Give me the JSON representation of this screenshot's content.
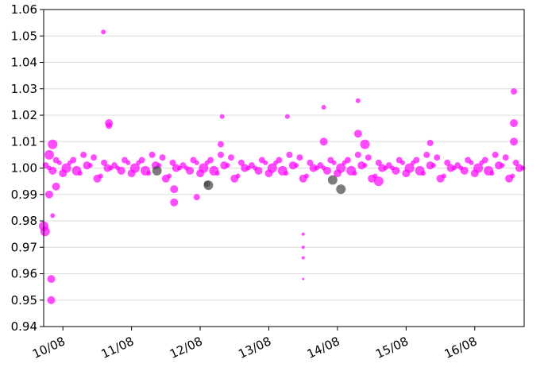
{
  "chart_data": {
    "type": "scatter",
    "xlim": [
      9.72,
      16.72
    ],
    "xticks": [
      {
        "value": 10,
        "label": "10/08"
      },
      {
        "value": 11,
        "label": "11/08"
      },
      {
        "value": 12,
        "label": "12/08"
      },
      {
        "value": 13,
        "label": "13/08"
      },
      {
        "value": 14,
        "label": "14/08"
      },
      {
        "value": 15,
        "label": "15/08"
      },
      {
        "value": 16,
        "label": "16/08"
      }
    ],
    "ylim": [
      0.94,
      1.06
    ],
    "yticks": [
      0.94,
      0.95,
      0.96,
      0.97,
      0.98,
      0.99,
      {
        "value": 1,
        "label": "1.00"
      },
      1.01,
      1.02,
      1.03,
      1.04,
      1.05,
      1.06
    ],
    "grid": true,
    "series": [
      {
        "color": "#ff00ff",
        "x": [
          9.72,
          9.74,
          9.83,
          9.83,
          9.85,
          9.85,
          9.8,
          9.8,
          9.9,
          10.59,
          10.67,
          10.67,
          11.62,
          11.62,
          11.95,
          12.32,
          12.3,
          13.27,
          13.5,
          13.5,
          13.5,
          13.5,
          13.8,
          13.8,
          14.3,
          14.3,
          14.4,
          14.6,
          15.35,
          16.57,
          16.57,
          16.57,
          9.75,
          9.85,
          9.95,
          10.05,
          10.15,
          10.25,
          10.35,
          10.45,
          10.55,
          10.65,
          10.75,
          10.85,
          10.95,
          11.05,
          11.15,
          11.25,
          11.35,
          11.45,
          11.55,
          11.65,
          11.75,
          11.85,
          11.95,
          12.05,
          12.15,
          12.25,
          12.35,
          12.45,
          12.55,
          12.65,
          12.75,
          12.85,
          12.95,
          13.05,
          13.15,
          13.25,
          13.35,
          13.45,
          13.55,
          13.65,
          13.75,
          13.85,
          13.95,
          14.05,
          14.15,
          14.25,
          14.35,
          14.45,
          14.55,
          14.65,
          14.75,
          14.85,
          14.95,
          15.05,
          15.15,
          15.25,
          15.35,
          15.45,
          15.55,
          15.65,
          15.75,
          15.85,
          15.95,
          16.05,
          16.15,
          16.25,
          16.35,
          16.45,
          16.55,
          16.65,
          9.8,
          9.9,
          10.0,
          10.1,
          10.2,
          10.3,
          10.4,
          10.5,
          10.6,
          10.7,
          10.8,
          10.9,
          11.0,
          11.1,
          11.2,
          11.3,
          11.4,
          11.5,
          11.6,
          11.7,
          11.8,
          11.9,
          12.0,
          12.1,
          12.2,
          12.3,
          12.4,
          12.5,
          12.6,
          12.7,
          12.8,
          12.9,
          13.0,
          13.1,
          13.2,
          13.3,
          13.4,
          13.5,
          13.6,
          13.7,
          13.8,
          13.9,
          14.0,
          14.1,
          14.2,
          14.3,
          14.4,
          14.5,
          14.6,
          14.7,
          14.8,
          14.9,
          15.0,
          15.1,
          15.2,
          15.3,
          15.4,
          15.5,
          15.6,
          15.7,
          15.8,
          15.9,
          16.0,
          16.1,
          16.2,
          16.3,
          16.4,
          16.5,
          16.6,
          16.7
        ],
        "values": [
          0.978,
          0.976,
          0.958,
          0.95,
          0.982,
          1.009,
          0.99,
          1.005,
          0.993,
          1.0515,
          1.017,
          1.016,
          0.987,
          0.992,
          0.989,
          1.0195,
          1.009,
          1.0195,
          0.97,
          0.966,
          0.975,
          0.958,
          1.023,
          1.01,
          1.0255,
          1.013,
          1.009,
          0.995,
          1.0095,
          1.029,
          1.017,
          1.01,
          1.001,
          0.999,
          1.002,
          1.0,
          1.003,
          0.998,
          1.001,
          1.004,
          0.997,
          1.0,
          1.001,
          0.999,
          1.002,
          1.0,
          1.003,
          0.998,
          1.001,
          1.004,
          0.997,
          1.0,
          1.001,
          0.999,
          1.002,
          1.0,
          1.003,
          0.998,
          1.001,
          1.004,
          0.997,
          1.0,
          1.001,
          0.999,
          1.002,
          1.0,
          1.003,
          0.998,
          1.001,
          1.004,
          0.997,
          1.0,
          1.001,
          0.999,
          1.002,
          1.0,
          1.003,
          0.998,
          1.001,
          1.004,
          0.997,
          1.0,
          1.001,
          0.999,
          1.002,
          1.0,
          1.003,
          0.998,
          1.001,
          1.004,
          0.997,
          1.0,
          1.001,
          0.999,
          1.002,
          1.0,
          1.003,
          0.998,
          1.001,
          1.004,
          0.997,
          1.0,
          1.0,
          1.003,
          0.998,
          1.002,
          0.999,
          1.005,
          1.001,
          0.996,
          1.002,
          1.0,
          1.0,
          1.003,
          0.998,
          1.002,
          0.999,
          1.005,
          1.001,
          0.996,
          1.002,
          1.0,
          1.0,
          1.003,
          0.998,
          1.002,
          0.999,
          1.005,
          1.001,
          0.996,
          1.002,
          1.0,
          1.0,
          1.003,
          0.998,
          1.002,
          0.999,
          1.005,
          1.001,
          0.996,
          1.002,
          1.0,
          1.0,
          1.003,
          0.998,
          1.002,
          0.999,
          1.005,
          1.001,
          0.996,
          1.002,
          1.0,
          1.0,
          1.003,
          0.998,
          1.002,
          0.999,
          1.005,
          1.001,
          0.996,
          1.002,
          1.0,
          1.0,
          1.003,
          0.998,
          1.002,
          0.999,
          1.005,
          1.001,
          0.996,
          1.002,
          1.0
        ],
        "sizes": [
          6,
          6,
          5,
          5,
          3,
          6,
          5,
          6,
          5,
          3,
          5,
          4,
          5,
          5,
          4,
          3,
          4,
          3,
          2,
          2,
          2,
          1.5,
          3,
          5,
          3,
          5,
          6,
          6,
          4,
          4,
          5,
          5,
          4,
          5,
          3,
          6,
          4,
          3,
          5,
          4,
          3,
          5,
          4,
          5,
          3,
          6,
          4,
          3,
          5,
          4,
          3,
          5,
          4,
          5,
          3,
          6,
          4,
          3,
          5,
          4,
          3,
          5,
          4,
          5,
          3,
          6,
          4,
          3,
          5,
          4,
          3,
          5,
          4,
          5,
          3,
          6,
          4,
          3,
          5,
          4,
          3,
          5,
          4,
          5,
          3,
          6,
          4,
          3,
          5,
          4,
          3,
          5,
          4,
          5,
          3,
          6,
          4,
          3,
          5,
          4,
          3,
          5,
          3,
          4,
          5,
          3,
          6,
          4,
          3,
          5,
          4,
          3,
          3,
          4,
          5,
          3,
          6,
          4,
          3,
          5,
          4,
          3,
          3,
          4,
          5,
          3,
          6,
          4,
          3,
          5,
          4,
          3,
          3,
          4,
          5,
          3,
          6,
          4,
          3,
          5,
          4,
          3,
          3,
          4,
          5,
          3,
          6,
          4,
          3,
          5,
          4,
          3,
          3,
          4,
          5,
          3,
          6,
          4,
          3,
          5,
          4,
          3,
          3,
          4,
          5,
          3,
          6,
          4,
          3,
          5,
          4,
          3
        ]
      },
      {
        "color": "#444444",
        "x": [
          11.37,
          12.12,
          12.1,
          13.93,
          14.05
        ],
        "values": [
          0.999,
          0.9935,
          0.994,
          0.9955,
          0.992
        ],
        "sizes": [
          6,
          6,
          4,
          6,
          6
        ]
      }
    ]
  }
}
